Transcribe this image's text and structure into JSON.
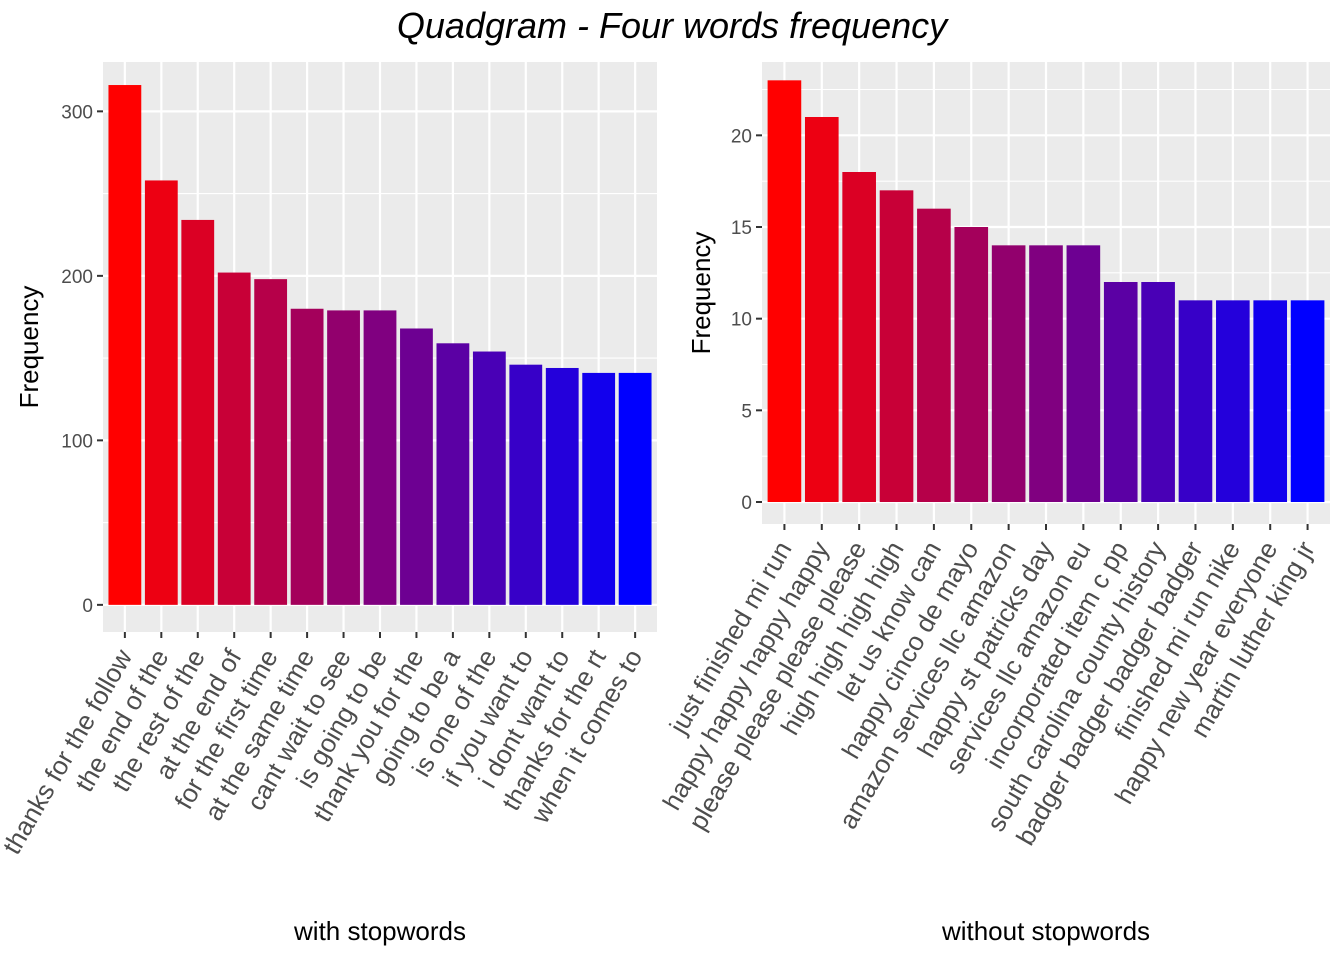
{
  "title": "Quadgram - Four words frequency",
  "chart_data": [
    {
      "type": "bar",
      "xlabel": "with stopwords",
      "ylabel": "Frequency",
      "ylim": [
        0,
        330
      ],
      "yticks": [
        0,
        100,
        200,
        300
      ],
      "grid": true,
      "color_gradient": [
        "#ff0000",
        "#0000ff"
      ],
      "categories": [
        "thanks for the follow",
        "the end of the",
        "the rest of the",
        "at the end of",
        "for the first time",
        "at the same time",
        "cant wait to see",
        "is going to be",
        "thank you for the",
        "going to be a",
        "is one of the",
        "if you want to",
        "i dont want to",
        "thanks for the rt",
        "when it comes to"
      ],
      "values": [
        316,
        258,
        234,
        202,
        198,
        180,
        179,
        179,
        168,
        159,
        154,
        146,
        144,
        141,
        141
      ]
    },
    {
      "type": "bar",
      "xlabel": "without stopwords",
      "ylabel": "Frequency",
      "ylim": [
        0,
        24
      ],
      "yticks": [
        0,
        5,
        10,
        15,
        20
      ],
      "grid": true,
      "color_gradient": [
        "#ff0000",
        "#0000ff"
      ],
      "categories": [
        "just finished mi run",
        "happy happy happy happy",
        "please please please please",
        "high high high high",
        "let us know can",
        "happy cinco de mayo",
        "amazon services llc amazon",
        "happy st patricks day",
        "services llc amazon eu",
        "incorporated item c pp",
        "south carolina county history",
        "badger badger badger badger",
        "finished mi run nike",
        "happy new year everyone",
        "martin luther king jr"
      ],
      "values": [
        23,
        21,
        18,
        17,
        16,
        15,
        14,
        14,
        14,
        12,
        12,
        11,
        11,
        11,
        11
      ]
    }
  ]
}
